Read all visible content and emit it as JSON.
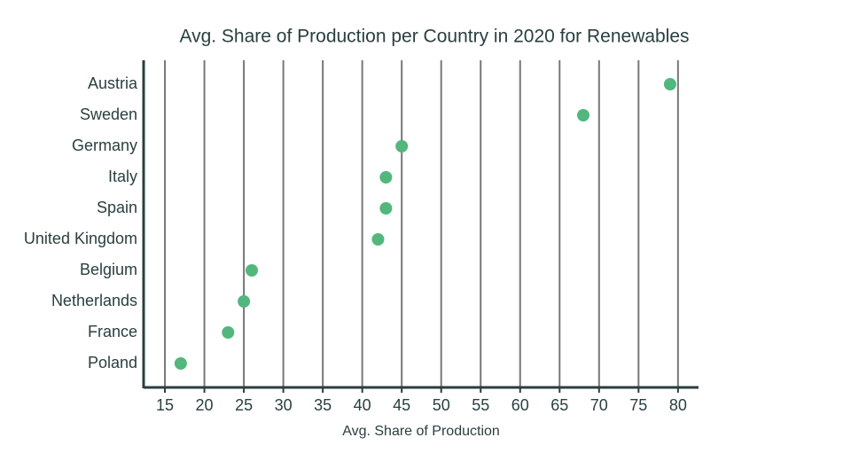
{
  "chart_data": {
    "type": "dot",
    "title": "Avg. Share of Production per Country in 2020 for Renewables",
    "x_label": "Avg. Share of Production",
    "categories": [
      "Austria",
      "Sweden",
      "Germany",
      "Italy",
      "Spain",
      "United Kingdom",
      "Belgium",
      "Netherlands",
      "France",
      "Poland"
    ],
    "values": [
      79,
      68,
      45,
      43,
      43,
      42,
      26,
      25,
      23,
      17
    ],
    "color": "#52b77d",
    "xlim": [
      12.3,
      82.6
    ],
    "xticks": [
      15,
      20,
      25,
      30,
      35,
      40,
      45,
      50,
      55,
      60,
      65,
      70,
      75,
      80
    ],
    "grid": true
  }
}
